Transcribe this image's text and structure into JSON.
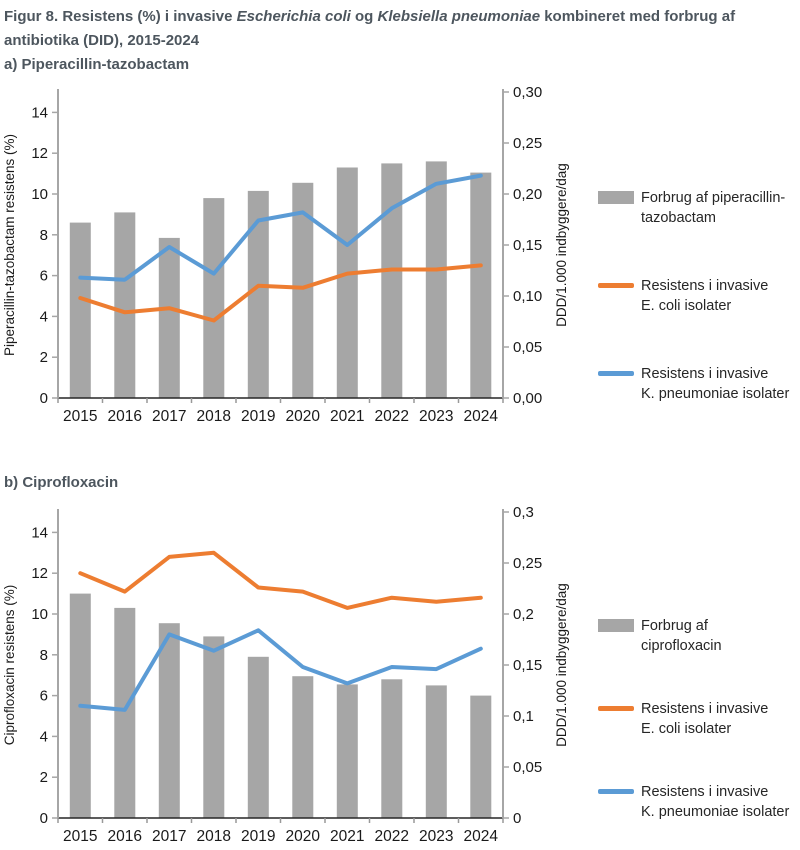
{
  "title": {
    "line1_segments": [
      {
        "t": "Figur 8. Resistens (%) i invasive ",
        "i": false
      },
      {
        "t": "Escherichia coli",
        "i": true
      },
      {
        "t": " og ",
        "i": false
      },
      {
        "t": "Klebsiella pneumoniae",
        "i": true
      },
      {
        "t": " kombineret med forbrug af",
        "i": false
      }
    ],
    "line2": "antibiotika (DID), 2015-2024"
  },
  "colors": {
    "bar": "#A6A6A6",
    "ecoli_line": "#ED7D31",
    "kpneumoniae_line": "#5B9BD5",
    "axis_gray": "#A6A6A6",
    "x_axis": "#262626",
    "x_tick": "#999999",
    "heading_text": "#4D565E",
    "tick_text": "#1a1a1a"
  },
  "charts": [
    {
      "heading": "a) Piperacillin-tazobactam",
      "legend": [
        {
          "swatch": "bar",
          "line1": "Forbrug af piperacillin-",
          "line2": "tazobactam"
        },
        {
          "swatch": "line-orange",
          "line1": "Resistens i invasive",
          "line2": "E. coli isolater"
        },
        {
          "swatch": "line-blue",
          "line1": "Resistens i invasive",
          "line2": "K. pneumoniae isolater"
        }
      ]
    },
    {
      "heading": "b) Ciprofloxacin",
      "legend": [
        {
          "swatch": "bar",
          "line1": "Forbrug af",
          "line2": "ciprofloxacin"
        },
        {
          "swatch": "line-orange",
          "line1": "Resistens i invasive",
          "line2": "E. coli isolater"
        },
        {
          "swatch": "line-blue",
          "line1": "Resistens i invasive",
          "line2": "K. pneumoniae isolater"
        }
      ]
    }
  ],
  "chart_data": [
    {
      "panel": "a",
      "title": "a) Piperacillin-tazobactam",
      "type": "combo_bar_line",
      "grid": false,
      "legend_position": "right",
      "categories": [
        "2015",
        "2016",
        "2017",
        "2018",
        "2019",
        "2020",
        "2021",
        "2022",
        "2023",
        "2024"
      ],
      "series": [
        {
          "name": "Forbrug af piperacillin-tazobactam",
          "type": "bar",
          "axis": "right",
          "unit": "DDD/1.000 indbyggere/dag",
          "color": "#A6A6A6",
          "values": [
            0.172,
            0.182,
            0.157,
            0.196,
            0.203,
            0.211,
            0.226,
            0.23,
            0.232,
            0.221
          ]
        },
        {
          "name": "Resistens i invasive E. coli isolater",
          "type": "line",
          "axis": "left",
          "unit": "%",
          "color": "#ED7D31",
          "values": [
            4.9,
            4.2,
            4.4,
            3.8,
            5.5,
            5.4,
            6.1,
            6.3,
            6.3,
            6.5
          ]
        },
        {
          "name": "Resistens i invasive K. pneumoniae isolater",
          "type": "line",
          "axis": "left",
          "unit": "%",
          "color": "#5B9BD5",
          "values": [
            5.9,
            5.8,
            7.4,
            6.1,
            8.7,
            9.1,
            7.5,
            9.3,
            10.5,
            10.9
          ]
        }
      ],
      "left_axis": {
        "label": "Piperacillin-tazobactam resistens (%)",
        "min": 0,
        "max": 15,
        "ticks": [
          0,
          2,
          4,
          6,
          8,
          10,
          12,
          14
        ]
      },
      "right_axis": {
        "label": "DDD/1.000 indbyggere/dag",
        "min": 0,
        "max": 0.3,
        "tick_labels": [
          "0,00",
          "0,05",
          "0,10",
          "0,15",
          "0,20",
          "0,25",
          "0,30"
        ]
      }
    },
    {
      "panel": "b",
      "title": "b) Ciprofloxacin",
      "type": "combo_bar_line",
      "grid": false,
      "legend_position": "right",
      "categories": [
        "2015",
        "2016",
        "2017",
        "2018",
        "2019",
        "2020",
        "2021",
        "2022",
        "2023",
        "2024"
      ],
      "series": [
        {
          "name": "Forbrug af ciprofloxacin",
          "type": "bar",
          "axis": "right",
          "unit": "DDD/1.000 indbyggere/dag",
          "color": "#A6A6A6",
          "values": [
            0.22,
            0.206,
            0.191,
            0.178,
            0.158,
            0.139,
            0.131,
            0.136,
            0.13,
            0.12
          ]
        },
        {
          "name": "Resistens i invasive E. coli isolater",
          "type": "line",
          "axis": "left",
          "unit": "%",
          "color": "#ED7D31",
          "values": [
            12.0,
            11.1,
            12.8,
            13.0,
            11.3,
            11.1,
            10.3,
            10.8,
            10.6,
            10.8
          ]
        },
        {
          "name": "Resistens i invasive K. pneumoniae isolater",
          "type": "line",
          "axis": "left",
          "unit": "%",
          "color": "#5B9BD5",
          "values": [
            5.5,
            5.3,
            9.0,
            8.2,
            9.2,
            7.4,
            6.6,
            7.4,
            7.3,
            8.3
          ]
        }
      ],
      "left_axis": {
        "label": "Ciprofloxacin resistens (%)",
        "min": 0,
        "max": 15,
        "ticks": [
          0,
          2,
          4,
          6,
          8,
          10,
          12,
          14
        ]
      },
      "right_axis": {
        "label": "DDD/1.000 indbyggere/dag",
        "min": 0,
        "max": 0.3,
        "tick_labels": [
          "0",
          "0,05",
          "0,1",
          "0,15",
          "0,2",
          "0,25",
          "0,3"
        ]
      }
    }
  ]
}
